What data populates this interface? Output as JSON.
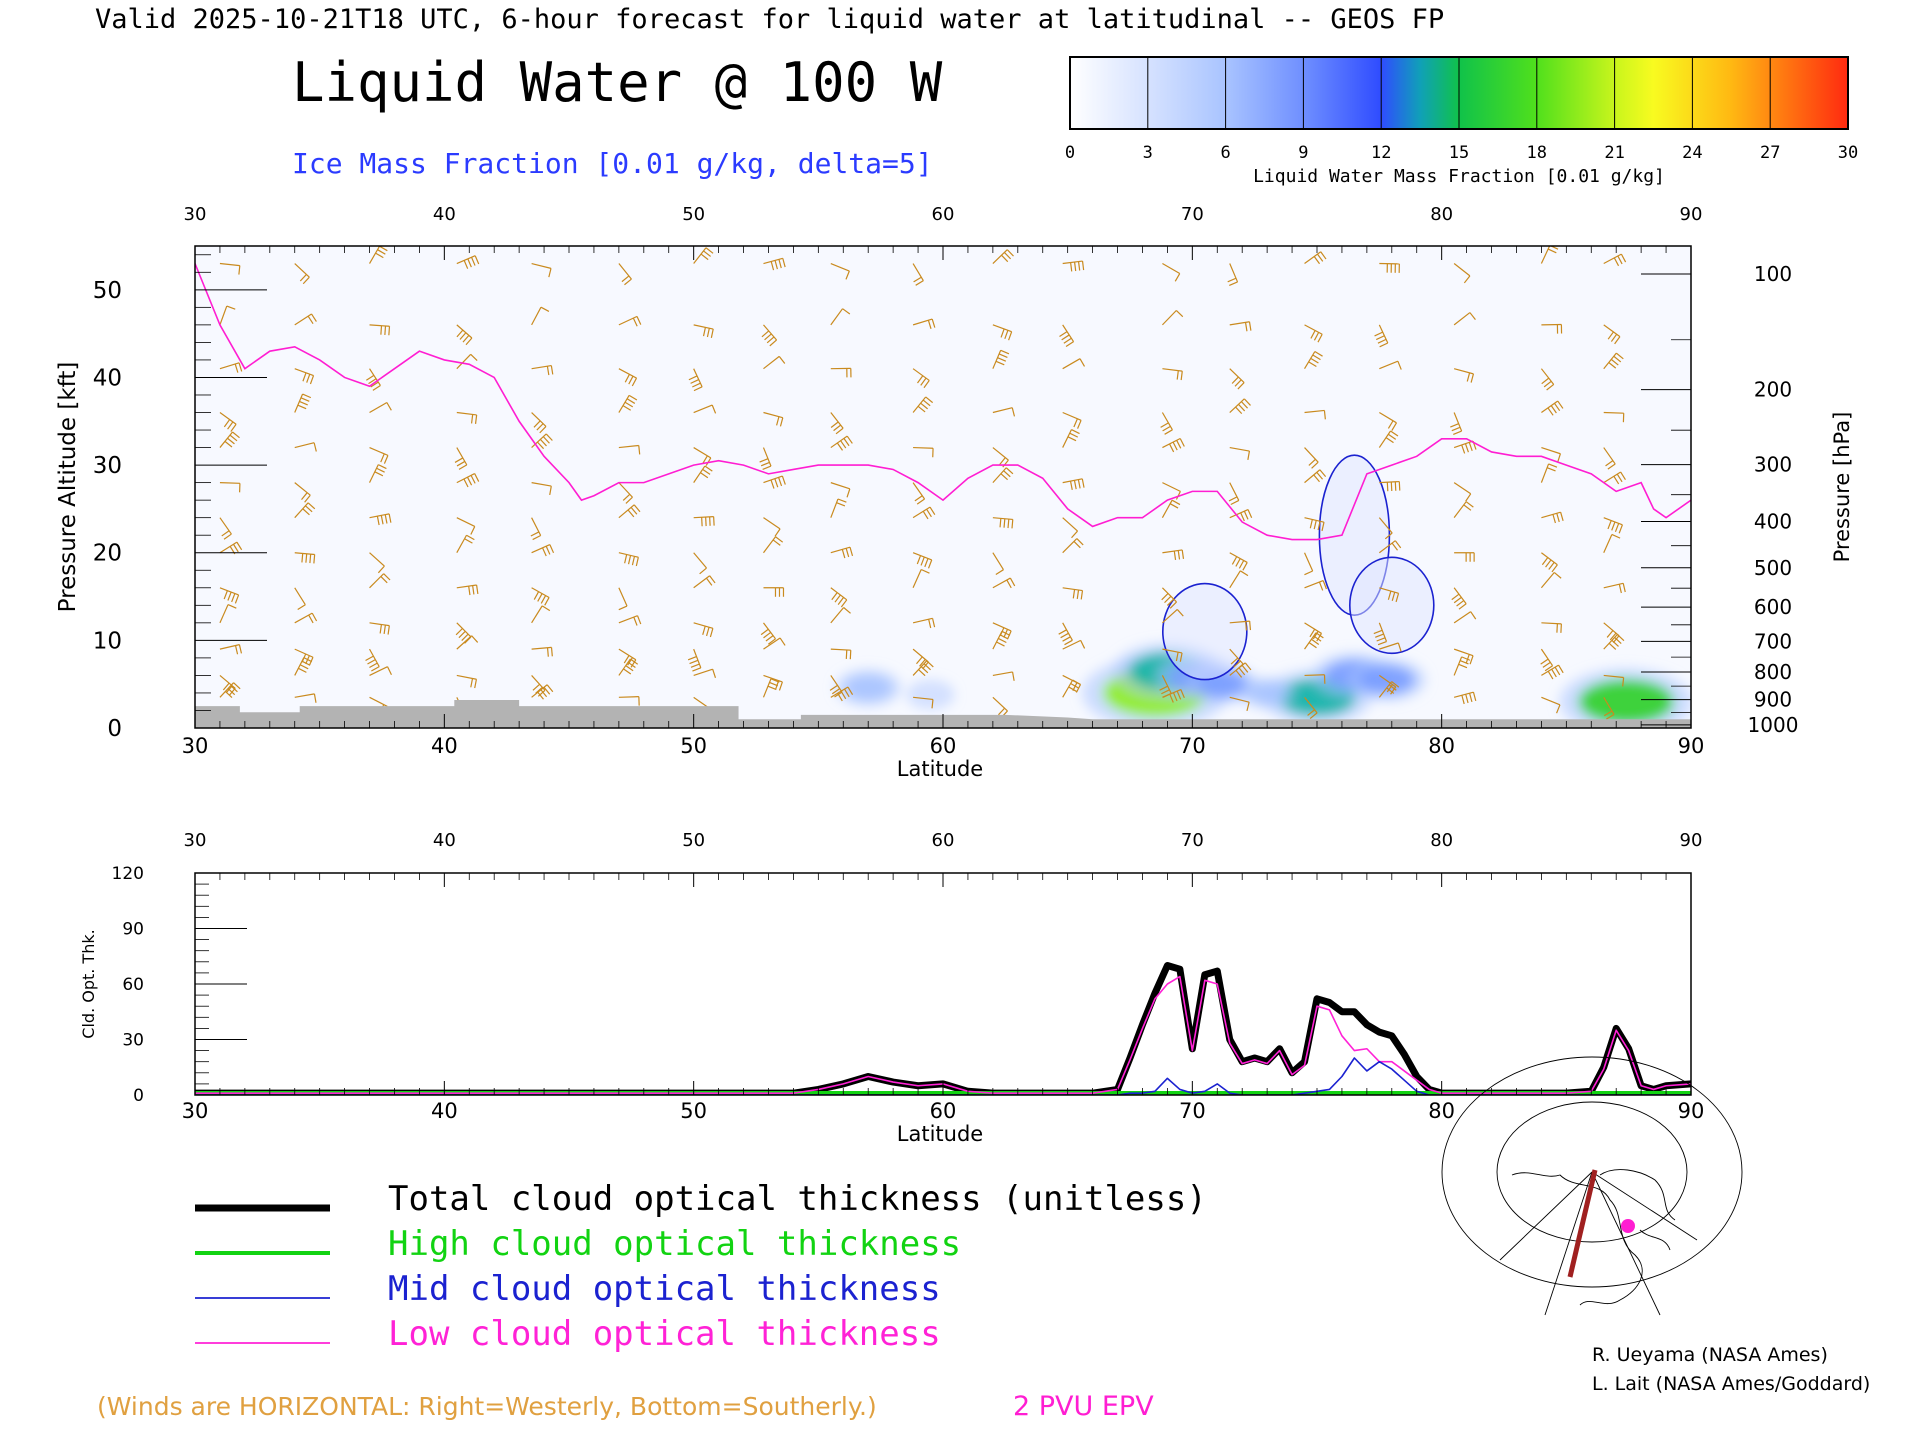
{
  "header": {
    "valid_line": "Valid 2025-10-21T18 UTC, 6-hour forecast for liquid water at latitudinal -- GEOS FP",
    "title": "Liquid Water @ 100 W",
    "subtitle": "Ice Mass Fraction [0.01 g/kg, delta=5]"
  },
  "colorbar": {
    "ticks": [
      "0",
      "3",
      "6",
      "9",
      "12",
      "15",
      "18",
      "21",
      "24",
      "27",
      "30"
    ],
    "label": "Liquid Water Mass Fraction [0.01 g/kg]",
    "colors": [
      "#f4f6ff",
      "#d6e2ff",
      "#a9c4ff",
      "#7a9dff",
      "#3f63ff",
      "#10b4a6",
      "#2fd226",
      "#8fef1a",
      "#f7fb22",
      "#ffc614",
      "#ff6a10"
    ]
  },
  "colors": {
    "ice_contour": "#1b22d0",
    "epv": "#ff1ed2",
    "wind": "#c98a1e",
    "terrain": "#b3b3b3",
    "total": "#000000",
    "high": "#12d312",
    "mid": "#1b22d0",
    "low": "#ff22d6"
  },
  "chart_data": [
    {
      "type": "heatmap",
      "title": "Liquid Water @ 100 W",
      "xlabel": "Latitude",
      "ylabel": "Pressure Altitude [kft]",
      "y2label": "Pressure [hPa]",
      "xlim": [
        30,
        90
      ],
      "ylim": [
        0,
        55
      ],
      "x_ticks": [
        "30",
        "40",
        "50",
        "60",
        "70",
        "80",
        "90"
      ],
      "y_ticks": [
        "0",
        "10",
        "20",
        "30",
        "40",
        "50"
      ],
      "pressure_ticks": [
        "100",
        "200",
        "300",
        "400",
        "500",
        "600",
        "700",
        "800",
        "900",
        "1000"
      ],
      "liquid_water_blobs": [
        {
          "lat": 68.5,
          "alt": 4.0,
          "value": 20
        },
        {
          "lat": 69.0,
          "alt": 6.5,
          "value": 14
        },
        {
          "lat": 70.2,
          "alt": 5.8,
          "value": 10
        },
        {
          "lat": 71.2,
          "alt": 5.0,
          "value": 8
        },
        {
          "lat": 75.0,
          "alt": 3.5,
          "value": 14
        },
        {
          "lat": 76.5,
          "alt": 6.0,
          "value": 10
        },
        {
          "lat": 77.8,
          "alt": 5.5,
          "value": 9
        },
        {
          "lat": 87.4,
          "alt": 3.0,
          "value": 18
        },
        {
          "lat": 57.0,
          "alt": 4.6,
          "value": 7
        },
        {
          "lat": 59.5,
          "alt": 3.8,
          "value": 4
        },
        {
          "lat": 73.0,
          "alt": 4.0,
          "value": 5
        }
      ],
      "ice_blobs": [
        {
          "lat": 70.5,
          "alt": 11.0,
          "value": 6
        },
        {
          "lat": 76.5,
          "alt": 22.0,
          "value": 5
        },
        {
          "lat": 78.0,
          "alt": 14.0,
          "value": 6
        }
      ],
      "epv_2pvu_alt_kft": [
        [
          30,
          53
        ],
        [
          31,
          46
        ],
        [
          32,
          41
        ],
        [
          33,
          43
        ],
        [
          34,
          43.5
        ],
        [
          35,
          42
        ],
        [
          36,
          40
        ],
        [
          37,
          39
        ],
        [
          38,
          41
        ],
        [
          39,
          43
        ],
        [
          40,
          42
        ],
        [
          41,
          41.5
        ],
        [
          42,
          40
        ],
        [
          43,
          35
        ],
        [
          44,
          31
        ],
        [
          45,
          28
        ],
        [
          45.5,
          26
        ],
        [
          46,
          26.5
        ],
        [
          47,
          28
        ],
        [
          48,
          28
        ],
        [
          49,
          29
        ],
        [
          50,
          30
        ],
        [
          51,
          30.5
        ],
        [
          52,
          30
        ],
        [
          53,
          29
        ],
        [
          54,
          29.5
        ],
        [
          55,
          30
        ],
        [
          56,
          30
        ],
        [
          57,
          30
        ],
        [
          58,
          29.5
        ],
        [
          59,
          28
        ],
        [
          60,
          26
        ],
        [
          61,
          28.5
        ],
        [
          62,
          30
        ],
        [
          63,
          30
        ],
        [
          64,
          28.5
        ],
        [
          65,
          25
        ],
        [
          66,
          23
        ],
        [
          67,
          24
        ],
        [
          68,
          24
        ],
        [
          69,
          26
        ],
        [
          70,
          27
        ],
        [
          71,
          27
        ],
        [
          72,
          23.5
        ],
        [
          73,
          22
        ],
        [
          74,
          21.5
        ],
        [
          75,
          21.5
        ],
        [
          76,
          22
        ],
        [
          77,
          29
        ],
        [
          78,
          30
        ],
        [
          79,
          31
        ],
        [
          80,
          33
        ],
        [
          81,
          33
        ],
        [
          82,
          31.5
        ],
        [
          83,
          31
        ],
        [
          84,
          31
        ],
        [
          85,
          30
        ],
        [
          86,
          29
        ],
        [
          87,
          27
        ],
        [
          88,
          28
        ],
        [
          88.5,
          25
        ],
        [
          89,
          24
        ],
        [
          90,
          26
        ]
      ],
      "terrain_alt_kft": [
        [
          30,
          2.5
        ],
        [
          31.8,
          2.5
        ],
        [
          31.8,
          1.8
        ],
        [
          34.2,
          1.8
        ],
        [
          34.2,
          2.5
        ],
        [
          40.4,
          2.5
        ],
        [
          40.4,
          3.2
        ],
        [
          43,
          3.2
        ],
        [
          43,
          2.5
        ],
        [
          51.8,
          2.5
        ],
        [
          51.8,
          1
        ],
        [
          54.3,
          1
        ],
        [
          54.3,
          1.5
        ],
        [
          60,
          1.5
        ],
        [
          62.5,
          1.5
        ],
        [
          65,
          1.2
        ],
        [
          66,
          1
        ],
        [
          80,
          1
        ],
        [
          90,
          1
        ]
      ],
      "legend_note": "(Winds are HORIZONTAL: Right=Westerly, Bottom=Southerly.)",
      "epv_label": "2 PVU EPV"
    },
    {
      "type": "line",
      "xlabel": "Latitude",
      "ylabel": "Cld. Opt. Thk.",
      "xlim": [
        30,
        90
      ],
      "ylim": [
        0,
        120
      ],
      "x_ticks": [
        "30",
        "40",
        "50",
        "60",
        "70",
        "80",
        "90"
      ],
      "y_ticks": [
        "0",
        "30",
        "60",
        "90",
        "120"
      ],
      "x": [
        30,
        50,
        54,
        55,
        56,
        57,
        58,
        59,
        60,
        61,
        62,
        63,
        64,
        65,
        66,
        67,
        67.5,
        68,
        68.5,
        69,
        69.5,
        70,
        70.5,
        71,
        71.5,
        72,
        72.5,
        73,
        73.5,
        74,
        74.5,
        75,
        75.5,
        76,
        76.5,
        77,
        77.5,
        78,
        78.5,
        79,
        79.5,
        80,
        81,
        82,
        84,
        85,
        86,
        86.5,
        87,
        87.5,
        88,
        88.5,
        89,
        90
      ],
      "series": [
        {
          "name": "Total cloud optical thickness (unitless)",
          "values": [
            1,
            1,
            1,
            3,
            6,
            10,
            7,
            5,
            6,
            2,
            1,
            1,
            1,
            1,
            1,
            3,
            20,
            38,
            55,
            70,
            68,
            25,
            65,
            67,
            30,
            18,
            20,
            18,
            25,
            12,
            18,
            52,
            50,
            45,
            45,
            38,
            34,
            32,
            22,
            10,
            3,
            1,
            1,
            1,
            1,
            1,
            2,
            15,
            36,
            25,
            5,
            3,
            5,
            6
          ]
        },
        {
          "name": "High cloud optical thickness",
          "values": [
            0,
            0,
            0,
            0,
            0,
            0,
            0,
            0,
            0,
            0,
            0,
            0,
            0,
            0,
            0,
            0,
            0,
            0,
            0,
            0,
            0,
            0,
            0,
            0,
            0,
            0,
            0,
            0,
            0,
            0,
            0,
            0,
            0,
            0,
            0,
            0,
            0,
            0,
            0,
            0,
            0,
            0,
            0,
            0,
            0,
            0,
            0,
            0,
            0,
            0,
            0,
            0,
            0,
            0
          ]
        },
        {
          "name": "Mid cloud optical thickness",
          "values": [
            0,
            0,
            0,
            0,
            0,
            0,
            0,
            0,
            0,
            0,
            0,
            0,
            0,
            0,
            0,
            0,
            1,
            1,
            2,
            9,
            3,
            1,
            2,
            6,
            1,
            0,
            0,
            0,
            0,
            0,
            1,
            2,
            3,
            10,
            20,
            13,
            18,
            14,
            8,
            2,
            0,
            0,
            0,
            0,
            0,
            0,
            0,
            0,
            0,
            0,
            0,
            0,
            0,
            0
          ]
        },
        {
          "name": "Low cloud optical thickness",
          "values": [
            1,
            1,
            1,
            3,
            6,
            10,
            7,
            5,
            6,
            2,
            1,
            1,
            1,
            1,
            1,
            3,
            19,
            36,
            52,
            60,
            64,
            24,
            62,
            60,
            28,
            17,
            19,
            17,
            24,
            11,
            16,
            48,
            46,
            32,
            24,
            25,
            18,
            18,
            13,
            8,
            3,
            1,
            1,
            1,
            1,
            1,
            2,
            14,
            35,
            24,
            5,
            3,
            5,
            6
          ]
        }
      ]
    }
  ],
  "legend": {
    "total": "Total cloud optical thickness (unitless)",
    "high": "High cloud optical thickness",
    "mid": "Mid cloud optical thickness",
    "low": "Low cloud optical thickness"
  },
  "credits": {
    "line1": "R. Ueyama (NASA Ames)",
    "line2": "L. Lait (NASA Ames/Goddard)"
  }
}
